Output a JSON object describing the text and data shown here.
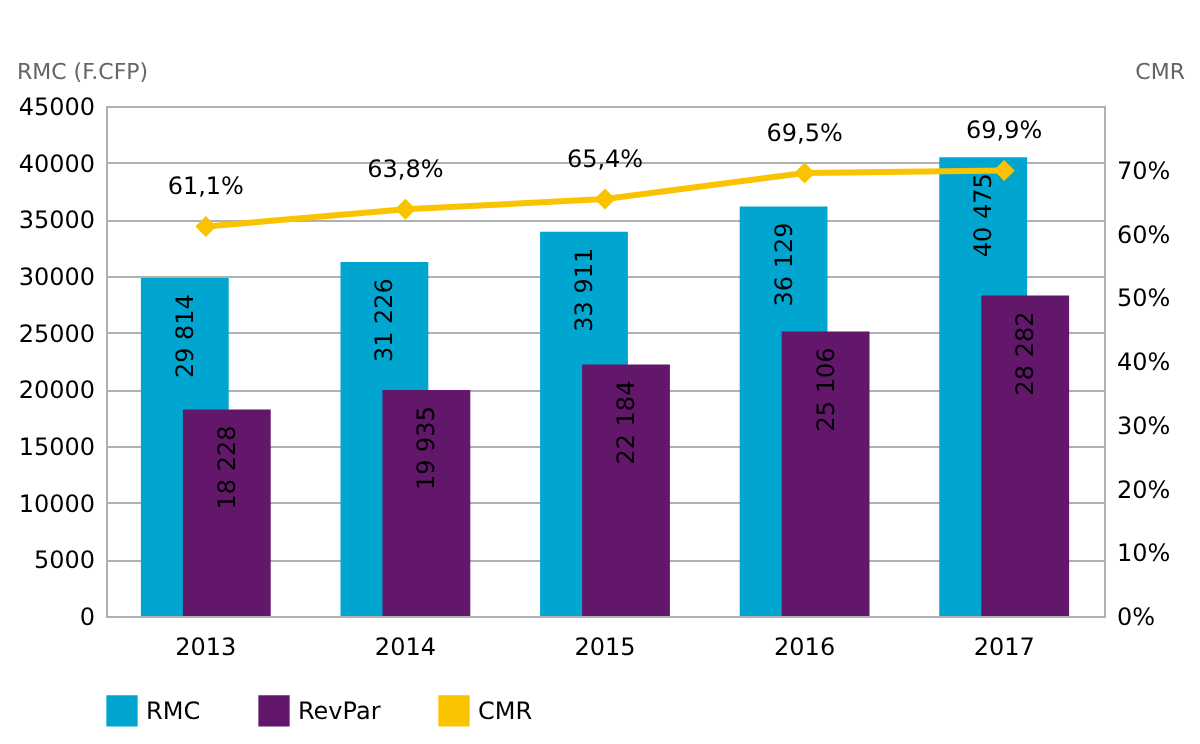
{
  "chart_data": {
    "type": "bar",
    "ylabel": "RMC (F.CFP)",
    "y2label": "CMR",
    "categories": [
      "2013",
      "2014",
      "2015",
      "2016",
      "2017"
    ],
    "series": [
      {
        "name": "RMC",
        "color": "#00a6d0",
        "values": [
          29814,
          31226,
          33911,
          36129,
          40475
        ],
        "value_labels": [
          "29 814",
          "31 226",
          "33 911",
          "36 129",
          "40 475"
        ]
      },
      {
        "name": "RevPar",
        "color": "#63176b",
        "values": [
          18228,
          19935,
          22184,
          25106,
          28282
        ],
        "value_labels": [
          "18 228",
          "19 935",
          "22 184",
          "25 106",
          "28 282"
        ]
      },
      {
        "name": "CMR",
        "type": "line",
        "axis": "y2",
        "color": "#f9c300",
        "values": [
          61.1,
          63.8,
          65.4,
          69.5,
          69.9
        ],
        "value_labels": [
          "61,1%",
          "63,8%",
          "65,4%",
          "69,5%",
          "69,9%"
        ],
        "marker": "diamond",
        "line_style": "solid"
      }
    ],
    "ylim": [
      0,
      45000
    ],
    "yticks": [
      0,
      5000,
      10000,
      15000,
      20000,
      25000,
      30000,
      35000,
      40000,
      45000
    ],
    "y2lim": [
      0,
      80
    ],
    "y2ticks": [
      {
        "value": 0,
        "label": "0%"
      },
      {
        "value": 10,
        "label": "10%"
      },
      {
        "value": 20,
        "label": "20%"
      },
      {
        "value": 30,
        "label": "30%"
      },
      {
        "value": 40,
        "label": "40%"
      },
      {
        "value": 50,
        "label": "50%"
      },
      {
        "value": 60,
        "label": "60%"
      },
      {
        "value": 70,
        "label": "70%"
      }
    ],
    "grid": "y",
    "legend": "bottom"
  }
}
